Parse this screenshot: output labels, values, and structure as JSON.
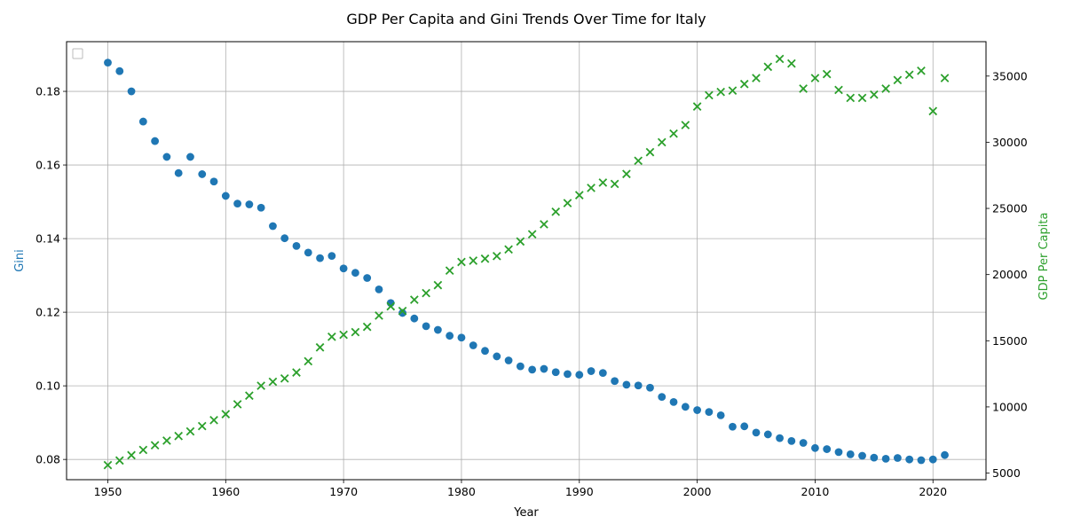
{
  "chart_data": {
    "type": "scatter",
    "title": "GDP Per Capita and Gini Trends Over Time for Italy",
    "xlabel": "Year",
    "ylabel_left": "Gini",
    "ylabel_right": "GDP Per Capita",
    "xlim": [
      1946.5,
      2024.5
    ],
    "ylim_left": [
      0.0745,
      0.1935
    ],
    "ylim_right": [
      4500,
      37600
    ],
    "xticks": [
      1950,
      1960,
      1970,
      1980,
      1990,
      2000,
      2010,
      2020
    ],
    "yticks_left": [
      0.08,
      0.1,
      0.12,
      0.14,
      0.16,
      0.18
    ],
    "yticks_right": [
      5000,
      10000,
      15000,
      20000,
      25000,
      30000,
      35000
    ],
    "grid": true,
    "legend": "upper-left (empty)",
    "x": [
      1950,
      1951,
      1952,
      1953,
      1954,
      1955,
      1956,
      1957,
      1958,
      1959,
      1960,
      1961,
      1962,
      1963,
      1964,
      1965,
      1966,
      1967,
      1968,
      1969,
      1970,
      1971,
      1972,
      1973,
      1974,
      1975,
      1976,
      1977,
      1978,
      1979,
      1980,
      1981,
      1982,
      1983,
      1984,
      1985,
      1986,
      1987,
      1988,
      1989,
      1990,
      1991,
      1992,
      1993,
      1994,
      1995,
      1996,
      1997,
      1998,
      1999,
      2000,
      2001,
      2002,
      2003,
      2004,
      2005,
      2006,
      2007,
      2008,
      2009,
      2010,
      2011,
      2012,
      2013,
      2014,
      2015,
      2016,
      2017,
      2018,
      2019,
      2020,
      2021
    ],
    "series": [
      {
        "name": "Gini",
        "axis": "left",
        "marker": "circle",
        "color": "#1f77b4",
        "values": [
          0.1878,
          0.1855,
          0.18,
          0.1718,
          0.1665,
          0.1622,
          0.1578,
          0.1622,
          0.1575,
          0.1555,
          0.1516,
          0.1495,
          0.1493,
          0.1484,
          0.1434,
          0.1401,
          0.138,
          0.1362,
          0.1347,
          0.1353,
          0.1319,
          0.1307,
          0.1293,
          0.1262,
          0.1225,
          0.1198,
          0.1183,
          0.1162,
          0.1152,
          0.1136,
          0.1131,
          0.111,
          0.1095,
          0.108,
          0.1069,
          0.1053,
          0.1044,
          0.1046,
          0.1037,
          0.1032,
          0.103,
          0.104,
          0.1035,
          0.1013,
          0.1003,
          0.1001,
          0.0995,
          0.097,
          0.0956,
          0.0943,
          0.0934,
          0.0929,
          0.092,
          0.0889,
          0.089,
          0.0873,
          0.0868,
          0.0858,
          0.085,
          0.0845,
          0.0831,
          0.0828,
          0.082,
          0.0814,
          0.081,
          0.0805,
          0.0802,
          0.0804,
          0.08,
          0.0798,
          0.08,
          0.0812
        ]
      },
      {
        "name": "GDP Per Capita",
        "axis": "right",
        "marker": "x",
        "color": "#2ca02c",
        "values": [
          5600,
          5950,
          6350,
          6750,
          7100,
          7450,
          7800,
          8150,
          8550,
          9000,
          9450,
          10200,
          10850,
          11600,
          11900,
          12150,
          12600,
          13450,
          14500,
          15300,
          15450,
          15650,
          16050,
          16900,
          17600,
          17250,
          18100,
          18600,
          19200,
          20300,
          20950,
          21050,
          21200,
          21400,
          21900,
          22500,
          23050,
          23800,
          24750,
          25400,
          26000,
          26550,
          26950,
          26850,
          27600,
          28600,
          29250,
          30000,
          30650,
          31300,
          32700,
          33550,
          33800,
          33900,
          34400,
          34850,
          35700,
          36300,
          35950,
          34050,
          34850,
          35150,
          33950,
          33350,
          33350,
          33600,
          34050,
          34700,
          35100,
          35400,
          32350,
          34850
        ]
      }
    ]
  }
}
